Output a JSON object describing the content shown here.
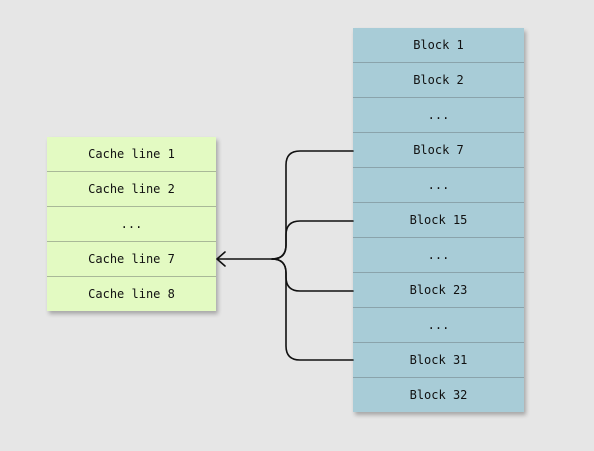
{
  "cache_lines": [
    "Cache line 1",
    "Cache line 2",
    "...",
    "Cache line 7",
    "Cache line 8"
  ],
  "blocks": [
    "Block 1",
    "Block 2",
    "...",
    "Block 7",
    "...",
    "Block 15",
    "...",
    "Block 23",
    "...",
    "Block 31",
    "Block 32"
  ],
  "colors": {
    "background": "#e6e6e6",
    "cache_fill": "#e3fac2",
    "block_fill": "#a8ccd7",
    "line": "#111111"
  },
  "mapping": {
    "target": "Cache line 7",
    "sources": [
      "Block 7",
      "Block 15",
      "Block 23",
      "Block 31"
    ]
  }
}
